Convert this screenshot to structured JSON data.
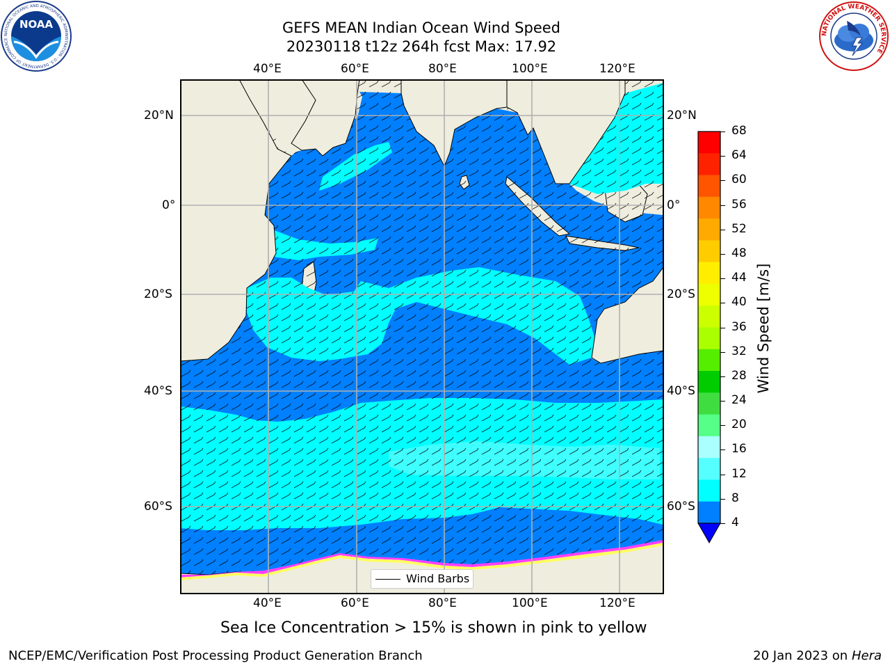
{
  "title": {
    "line1": "GEFS MEAN Indian Ocean Wind Speed",
    "line2": "20230118 t12z 264h fcst   Max: 17.92"
  },
  "map": {
    "lon_labels": [
      "40°E",
      "60°E",
      "80°E",
      "100°E",
      "120°E"
    ],
    "lat_labels": [
      "20°N",
      "0°",
      "20°S",
      "40°S",
      "60°S"
    ],
    "legend_label": "Wind Barbs",
    "caption": "Sea Ice Concentration > 15% is shown in pink to yellow",
    "colors": {
      "land": "#eeedde",
      "wind_4_8": "#0080ff",
      "wind_8_12": "#00ffff",
      "wind_12_16": "#40ffff",
      "ice_pink": "#ff40ff",
      "ice_yellow": "#ffff60"
    }
  },
  "colorbar": {
    "title": "Wind Speed [m/s]",
    "ticks": [
      "68",
      "64",
      "60",
      "56",
      "52",
      "48",
      "44",
      "40",
      "36",
      "32",
      "28",
      "24",
      "20",
      "16",
      "12",
      "8",
      "4"
    ],
    "colors_top_to_bottom": [
      "#ff0000",
      "#ff2200",
      "#ff5500",
      "#ff8800",
      "#ffaa00",
      "#ffcc00",
      "#ffee00",
      "#eeff00",
      "#ccff00",
      "#aaff00",
      "#55ee00",
      "#00cc00",
      "#40dd40",
      "#55ff88",
      "#aaffff",
      "#55ffff",
      "#00ffff",
      "#0080ff"
    ],
    "under_color": "#0000ff"
  },
  "footer": {
    "left": "NCEP/EMC/Verification Post Processing Product Generation Branch",
    "right_prefix": "20 Jan 2023 on ",
    "right_host": "Hera"
  },
  "logos": {
    "noaa_text": "NOAA",
    "noaa_ring_text": "NATIONAL OCEANIC AND ATMOSPHERIC ADMINISTRATION · U.S. DEPARTMENT OF COMMERCE",
    "nws_ring_text": "NATIONAL WEATHER SERVICE"
  }
}
